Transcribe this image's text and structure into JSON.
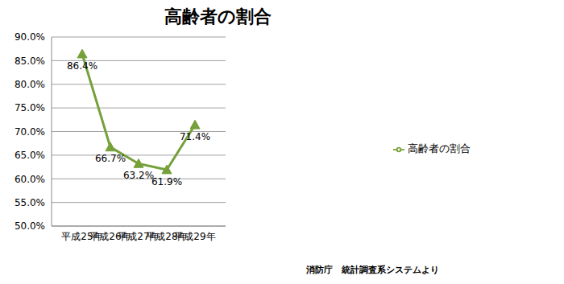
{
  "chart_data": {
    "type": "line",
    "title": "高齢者の割合",
    "categories": [
      "平成25年",
      "平成26年",
      "平成27年",
      "平成28年",
      "平成29年"
    ],
    "series": [
      {
        "name": "高齢者の割合",
        "color": "#76a03a",
        "marker": "triangle",
        "line_style": "solid",
        "values": [
          86.4,
          66.7,
          63.2,
          61.9,
          71.4
        ],
        "value_labels": [
          "86.4%",
          "66.7%",
          "63.2%",
          "61.9%",
          "71.4%"
        ]
      }
    ],
    "ylim": [
      50,
      90
    ],
    "yticks": [
      {
        "value": 50,
        "label": "50.0%"
      },
      {
        "value": 55,
        "label": "55.0%"
      },
      {
        "value": 60,
        "label": "60.0%"
      },
      {
        "value": 65,
        "label": "65.0%"
      },
      {
        "value": 70,
        "label": "70.0%"
      },
      {
        "value": 75,
        "label": "75.0%"
      },
      {
        "value": 80,
        "label": "80.0%"
      },
      {
        "value": 85,
        "label": "85.0%"
      },
      {
        "value": 90,
        "label": "90.0%"
      }
    ],
    "grid": true,
    "data_labels": true,
    "legend": "right",
    "annotations": [
      "消防庁　統計調査系システムより"
    ]
  }
}
